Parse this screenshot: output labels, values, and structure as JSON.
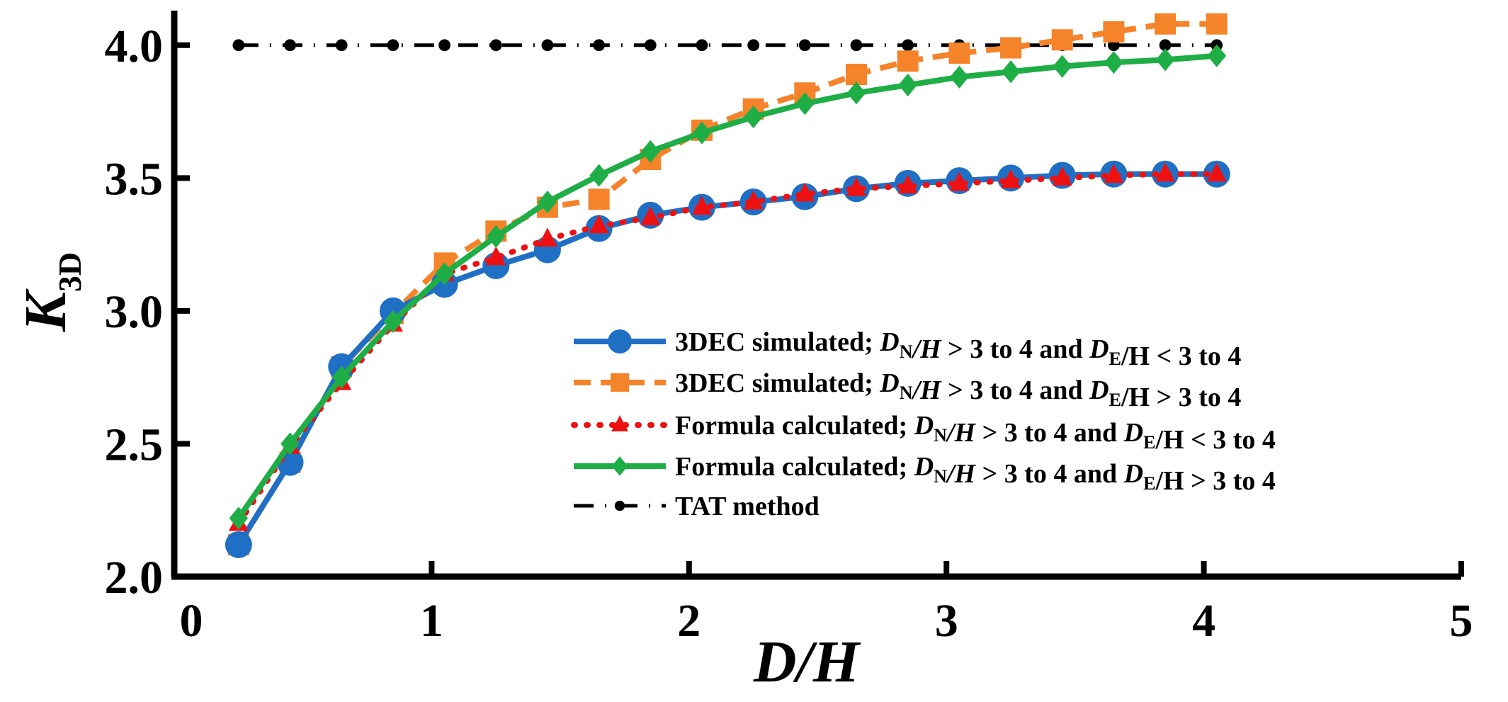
{
  "chart_data": {
    "type": "line",
    "title": "",
    "xlabel": "D/H",
    "ylabel": {
      "main": "K",
      "sub": "3D"
    },
    "xlim": [
      0,
      5
    ],
    "ylim": [
      2.0,
      4.05
    ],
    "xticks": [
      0,
      1,
      2,
      3,
      4,
      5
    ],
    "xtick_labels": [
      "0",
      "1",
      "2",
      "3",
      "4",
      "5"
    ],
    "yticks": [
      2.0,
      2.5,
      3.0,
      3.5,
      4.0
    ],
    "ytick_labels": [
      "2.0",
      "2.5",
      "3.0",
      "3.5",
      "4.0"
    ],
    "grid": false,
    "legend_position": "lower-right",
    "x": [
      0.25,
      0.45,
      0.65,
      0.85,
      1.05,
      1.25,
      1.45,
      1.65,
      1.85,
      2.05,
      2.25,
      2.45,
      2.65,
      2.85,
      3.05,
      3.25,
      3.45,
      3.65,
      3.85,
      4.05
    ],
    "series": [
      {
        "name": "3DEC simulated; DN/H > 3 to 4 and DE/H < 3 to 4",
        "legend": {
          "prefix": "3DEC simulated; ",
          "a": "D",
          "asub": "N",
          "b": "/H",
          "c": " > 3 to 4 and ",
          "d": "D",
          "dsub": "E",
          "e": "/H < 3 to 4"
        },
        "color": "#1f6fc5",
        "line": "solid",
        "marker": "circle",
        "values": [
          2.12,
          2.43,
          2.79,
          3.0,
          3.1,
          3.17,
          3.23,
          3.31,
          3.36,
          3.39,
          3.41,
          3.43,
          3.46,
          3.48,
          3.49,
          3.5,
          3.51,
          3.515,
          3.515,
          3.515
        ]
      },
      {
        "name": "3DEC simulated; DN/H > 3 to 4 and DE/H > 3 to 4",
        "legend": {
          "prefix": "3DEC simulated; ",
          "a": "D",
          "asub": "N",
          "b": "/H",
          "c": " > 3 to 4 and ",
          "d": "D",
          "dsub": "E",
          "e": "/H > 3 to 4"
        },
        "color": "#f5832a",
        "line": "dashed",
        "marker": "square",
        "values": [
          2.12,
          2.43,
          2.79,
          2.99,
          3.18,
          3.3,
          3.39,
          3.42,
          3.57,
          3.68,
          3.76,
          3.82,
          3.89,
          3.94,
          3.97,
          3.99,
          4.02,
          4.05,
          4.08,
          4.08
        ]
      },
      {
        "name": "Formula calculated; DN/H > 3 to 4 and DE/H < 3 to 4",
        "legend": {
          "prefix": "Formula calculated; ",
          "a": "D",
          "asub": "N",
          "b": "/H",
          "c": " > 3 to 4 and ",
          "d": "D",
          "dsub": "E",
          "e": "/H < 3 to 4"
        },
        "color": "#ee1111",
        "line": "dotted",
        "marker": "triangle",
        "values": [
          2.2,
          2.49,
          2.73,
          2.95,
          3.14,
          3.2,
          3.27,
          3.32,
          3.35,
          3.39,
          3.41,
          3.44,
          3.46,
          3.47,
          3.48,
          3.49,
          3.5,
          3.51,
          3.515,
          3.515
        ]
      },
      {
        "name": "Formula calculated; DN/H > 3 to 4 and DE/H > 3 to 4",
        "legend": {
          "prefix": "Formula calculated; ",
          "a": "D",
          "asub": "N",
          "b": "/H",
          "c": " > 3 to 4 and ",
          "d": "D",
          "dsub": "E",
          "e": "/H > 3 to 4"
        },
        "color": "#1fae46",
        "line": "solid",
        "marker": "diamond",
        "values": [
          2.22,
          2.5,
          2.75,
          2.96,
          3.14,
          3.28,
          3.41,
          3.51,
          3.6,
          3.67,
          3.73,
          3.78,
          3.82,
          3.85,
          3.88,
          3.9,
          3.92,
          3.935,
          3.945,
          3.96
        ]
      },
      {
        "name": "TAT method",
        "legend": {
          "prefix": "TAT method",
          "a": "",
          "asub": "",
          "b": "",
          "c": "",
          "d": "",
          "dsub": "",
          "e": ""
        },
        "color": "#000000",
        "line": "dashdot",
        "marker": "dot",
        "values": [
          4.0,
          4.0,
          4.0,
          4.0,
          4.0,
          4.0,
          4.0,
          4.0,
          4.0,
          4.0,
          4.0,
          4.0,
          4.0,
          4.0,
          4.0,
          4.0,
          4.0,
          4.0,
          4.0,
          4.0
        ]
      }
    ]
  }
}
